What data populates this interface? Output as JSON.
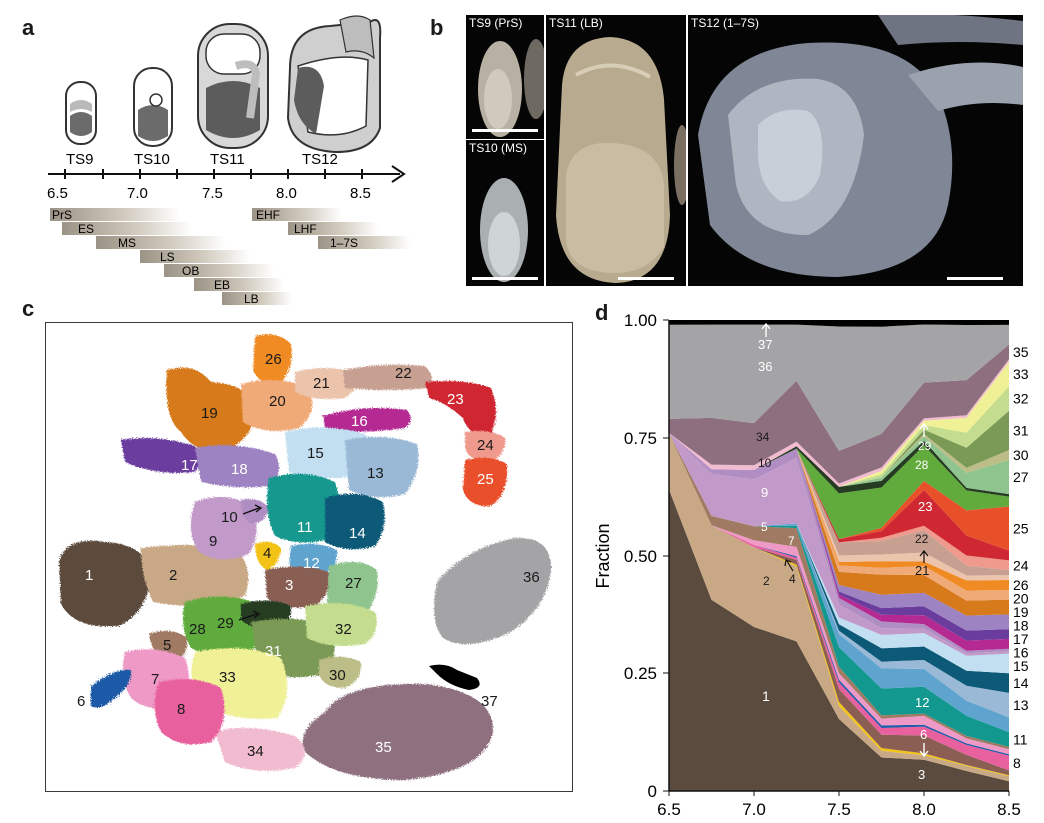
{
  "panels": {
    "a": "a",
    "b": "b",
    "c": "c",
    "d": "d"
  },
  "panel_a": {
    "stages": [
      "TS9",
      "TS10",
      "TS11",
      "TS12"
    ],
    "ticks": [
      "6.5",
      "7.0",
      "7.5",
      "8.0",
      "8.5"
    ],
    "bars": [
      "PrS",
      "ES",
      "MS",
      "LS",
      "OB",
      "EB",
      "LB",
      "EHF",
      "LHF",
      "1–7S"
    ]
  },
  "panel_b": {
    "photos": [
      "TS9 (PrS)",
      "TS10 (MS)",
      "TS11 (LB)",
      "TS12 (1–7S)"
    ]
  },
  "panel_c": {
    "cluster_labels": [
      "1",
      "2",
      "3",
      "4",
      "5",
      "6",
      "7",
      "8",
      "9",
      "10",
      "11",
      "12",
      "13",
      "14",
      "15",
      "16",
      "17",
      "18",
      "19",
      "20",
      "21",
      "22",
      "23",
      "24",
      "25",
      "26",
      "27",
      "28",
      "29",
      "30",
      "31",
      "32",
      "33",
      "34",
      "35",
      "36",
      "37"
    ],
    "cluster_colors": {
      "1": "#5b4b3e",
      "2": "#c9a985",
      "3": "#8a5e52",
      "4": "#f2c318",
      "5": "#a07a62",
      "6": "#1f5aa8",
      "7": "#ef9ac6",
      "8": "#e8609e",
      "9": "#c19ac9",
      "10": "#b08dc2",
      "11": "#12988f",
      "12": "#5fa4cf",
      "13": "#9ab9d6",
      "14": "#0d5a78",
      "15": "#c2dff2",
      "16": "#b52a92",
      "17": "#6a3c9e",
      "18": "#9d83c2",
      "19": "#d67a1c",
      "20": "#f0aa78",
      "21": "#ecc3ab",
      "22": "#c8a092",
      "23": "#cf2832",
      "24": "#ef9a8c",
      "25": "#e8502a",
      "26": "#f08a22",
      "27": "#8fc48f",
      "28": "#61ab3c",
      "29": "#263c22",
      "30": "#bdbd88",
      "31": "#7a9a55",
      "32": "#c3dc8e",
      "33": "#f0f096",
      "34": "#f2bcd0",
      "35": "#8e6f7f",
      "36": "#a4a4a6",
      "37": "#000000"
    }
  },
  "chart_data": {
    "type": "area",
    "x": [
      6.5,
      6.75,
      7.0,
      7.25,
      7.5,
      7.75,
      8.0,
      8.25,
      8.5
    ],
    "xticks": [
      "6.5",
      "7.0",
      "7.5",
      "8.0",
      "8.5"
    ],
    "yticks": [
      "0",
      "0.25",
      "0.50",
      "0.75",
      "1.00"
    ],
    "ylabel": "Fraction",
    "xlim": [
      6.5,
      8.5
    ],
    "ylim": [
      0,
      1
    ],
    "series": [
      {
        "name": "1",
        "color": "#5b4b3e",
        "values": [
          0.64,
          0.41,
          0.35,
          0.32,
          0.11,
          0.05,
          0.07,
          0.04,
          0.02
        ]
      },
      {
        "name": "2",
        "color": "#c9a985",
        "values": [
          0.12,
          0.16,
          0.17,
          0.16,
          0.02,
          0.01,
          0.01,
          0.01,
          0.01
        ]
      },
      {
        "name": "4",
        "color": "#f2c318",
        "values": [
          0.0,
          0.0,
          0.0,
          0.004,
          0.006,
          0.004,
          0.004,
          0.002,
          0.002
        ]
      },
      {
        "name": "3",
        "color": "#8a5e52",
        "values": [
          0.0,
          0.0,
          0.0,
          0.01,
          0.02,
          0.02,
          0.04,
          0.02,
          0.01
        ]
      },
      {
        "name": "8",
        "color": "#e8609e",
        "values": [
          0.0,
          0.0,
          0.005,
          0.005,
          0.01,
          0.01,
          0.02,
          0.02,
          0.03
        ]
      },
      {
        "name": "6",
        "color": "#1f5aa8",
        "values": [
          0.0,
          0.0,
          0.0,
          0.003,
          0.004,
          0.004,
          0.004,
          0.003,
          0.003
        ]
      },
      {
        "name": "7",
        "color": "#ef9ac6",
        "values": [
          0.0,
          0.0,
          0.01,
          0.02,
          0.01,
          0.01,
          0.02,
          0.01,
          0.01
        ]
      },
      {
        "name": "5",
        "color": "#a07a62",
        "values": [
          0.0,
          0.02,
          0.03,
          0.04,
          0.01,
          0.005,
          0.005,
          0.005,
          0.005
        ]
      },
      {
        "name": "11",
        "color": "#12988f",
        "values": [
          0.0,
          0.0,
          0.0,
          0.005,
          0.03,
          0.04,
          0.06,
          0.04,
          0.03
        ]
      },
      {
        "name": "12",
        "color": "#5fa4cf",
        "values": [
          0.0,
          0.0,
          0.0,
          0.005,
          0.02,
          0.03,
          0.04,
          0.03,
          0.03
        ]
      },
      {
        "name": "13",
        "color": "#9ab9d6",
        "values": [
          0.0,
          0.0,
          0.0,
          0.0,
          0.005,
          0.01,
          0.02,
          0.03,
          0.05
        ]
      },
      {
        "name": "14",
        "color": "#0d5a78",
        "values": [
          0.0,
          0.0,
          0.0,
          0.0,
          0.01,
          0.02,
          0.03,
          0.03,
          0.04
        ]
      },
      {
        "name": "15",
        "color": "#c2dff2",
        "values": [
          0.0,
          0.0,
          0.0,
          0.0,
          0.01,
          0.02,
          0.03,
          0.03,
          0.04
        ]
      },
      {
        "name": "9",
        "color": "#c19ac9",
        "values": [
          0.0,
          0.09,
          0.1,
          0.14,
          0.02,
          0.01,
          0.01,
          0.005,
          0.005
        ]
      },
      {
        "name": "10",
        "color": "#b08dc2",
        "values": [
          0.0,
          0.01,
          0.02,
          0.02,
          0.01,
          0.01,
          0.01,
          0.005,
          0.005
        ]
      },
      {
        "name": "16",
        "color": "#b52a92",
        "values": [
          0.0,
          0.0,
          0.0,
          0.0,
          0.005,
          0.01,
          0.02,
          0.02,
          0.02
        ]
      },
      {
        "name": "17",
        "color": "#6a3c9e",
        "values": [
          0.0,
          0.0,
          0.0,
          0.0,
          0.005,
          0.01,
          0.02,
          0.02,
          0.02
        ]
      },
      {
        "name": "18",
        "color": "#9d83c2",
        "values": [
          0.0,
          0.0,
          0.0,
          0.0,
          0.01,
          0.02,
          0.03,
          0.03,
          0.03
        ]
      },
      {
        "name": "19",
        "color": "#d67a1c",
        "values": [
          0.0,
          0.0,
          0.0,
          0.0,
          0.02,
          0.03,
          0.04,
          0.03,
          0.03
        ]
      },
      {
        "name": "20",
        "color": "#f0aa78",
        "values": [
          0.0,
          0.0,
          0.0,
          0.0,
          0.01,
          0.01,
          0.02,
          0.02,
          0.02
        ]
      },
      {
        "name": "26",
        "color": "#f08a22",
        "values": [
          0.0,
          0.0,
          0.0,
          0.0,
          0.005,
          0.01,
          0.01,
          0.02,
          0.02
        ]
      },
      {
        "name": "21",
        "color": "#ecc3ab",
        "values": [
          0.0,
          0.0,
          0.0,
          0.0,
          0.01,
          0.01,
          0.02,
          0.01,
          0.01
        ]
      },
      {
        "name": "22",
        "color": "#c8a092",
        "values": [
          0.0,
          0.0,
          0.0,
          0.0,
          0.02,
          0.02,
          0.05,
          0.02,
          0.01
        ]
      },
      {
        "name": "24",
        "color": "#ef9a8c",
        "values": [
          0.0,
          0.0,
          0.0,
          0.0,
          0.0,
          0.005,
          0.01,
          0.02,
          0.02
        ]
      },
      {
        "name": "23",
        "color": "#cf2832",
        "values": [
          0.0,
          0.0,
          0.0,
          0.0,
          0.005,
          0.01,
          0.08,
          0.04,
          0.02
        ]
      },
      {
        "name": "25",
        "color": "#e8502a",
        "values": [
          0.0,
          0.0,
          0.0,
          0.0,
          0.0,
          0.005,
          0.02,
          0.05,
          0.09
        ]
      },
      {
        "name": "28",
        "color": "#61ab3c",
        "values": [
          0.0,
          0.0,
          0.0,
          0.0,
          0.07,
          0.06,
          0.08,
          0.04,
          0.02
        ]
      },
      {
        "name": "29",
        "color": "#263c22",
        "values": [
          0.0,
          0.0,
          0.0,
          0.005,
          0.01,
          0.01,
          0.01,
          0.005,
          0.005
        ]
      },
      {
        "name": "27",
        "color": "#8fc48f",
        "values": [
          0.0,
          0.0,
          0.0,
          0.0,
          0.0,
          0.005,
          0.01,
          0.03,
          0.07
        ]
      },
      {
        "name": "30",
        "color": "#bdbd88",
        "values": [
          0.0,
          0.0,
          0.0,
          0.0,
          0.0,
          0.0,
          0.005,
          0.01,
          0.02
        ]
      },
      {
        "name": "31",
        "color": "#7a9a55",
        "values": [
          0.0,
          0.0,
          0.0,
          0.0,
          0.0,
          0.0,
          0.01,
          0.04,
          0.08
        ]
      },
      {
        "name": "32",
        "color": "#c3dc8e",
        "values": [
          0.0,
          0.0,
          0.0,
          0.0,
          0.0,
          0.005,
          0.01,
          0.03,
          0.05
        ]
      },
      {
        "name": "33",
        "color": "#f0f096",
        "values": [
          0.0,
          0.0,
          0.0,
          0.0,
          0.0,
          0.005,
          0.01,
          0.03,
          0.05
        ]
      },
      {
        "name": "34",
        "color": "#f2bcd0",
        "values": [
          0.0,
          0.01,
          0.01,
          0.01,
          0.005,
          0.005,
          0.005,
          0.005,
          0.005
        ]
      },
      {
        "name": "35",
        "color": "#8e6f7f",
        "values": [
          0.03,
          0.1,
          0.09,
          0.13,
          0.05,
          0.05,
          0.08,
          0.07,
          0.03
        ]
      },
      {
        "name": "36",
        "color": "#a4a4a6",
        "values": [
          0.2,
          0.2,
          0.21,
          0.12,
          0.19,
          0.16,
          0.13,
          0.11,
          0.04
        ]
      },
      {
        "name": "37",
        "color": "#000000",
        "values": [
          0.01,
          0.01,
          0.01,
          0.01,
          0.01,
          0.01,
          0.01,
          0.01,
          0.01
        ]
      }
    ],
    "right_labels": [
      "35",
      "33",
      "32",
      "31",
      "30",
      "27",
      "25",
      "24",
      "26",
      "20",
      "19",
      "18",
      "17",
      "16",
      "15",
      "14",
      "13",
      "11",
      "8"
    ],
    "inner_labels": {
      "l37": "37",
      "l36": "36",
      "l34": "34",
      "l10": "10",
      "l9": "9",
      "l5": "5",
      "l7": "7",
      "l2": "2",
      "l4": "4",
      "l1": "1",
      "l29": "29",
      "l28": "28",
      "l23": "23",
      "l22": "22",
      "l21": "21",
      "l12": "12",
      "l6": "6",
      "l3": "3"
    }
  }
}
